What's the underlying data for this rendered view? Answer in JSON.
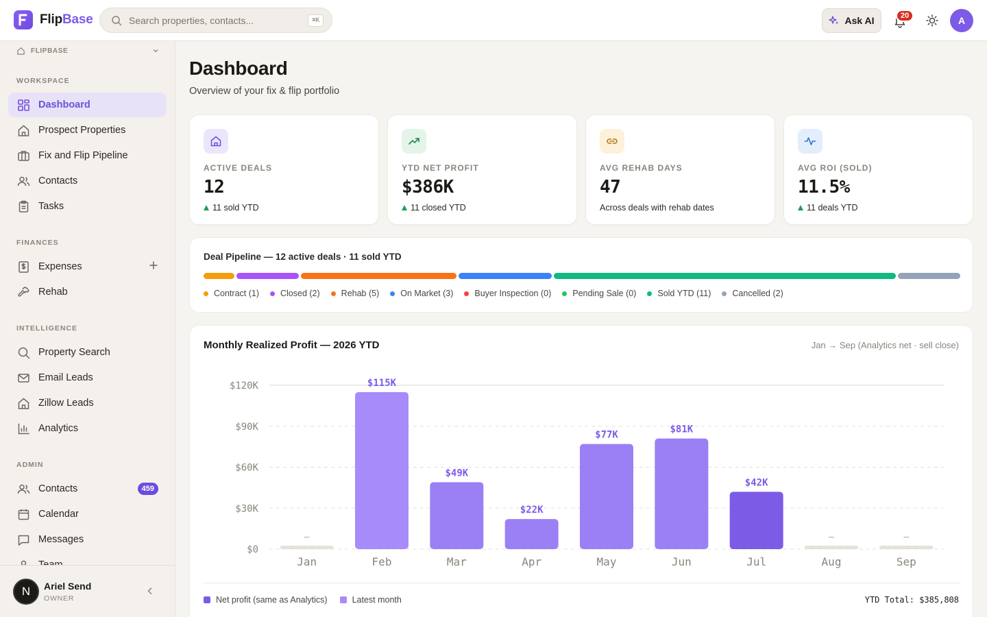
{
  "app": {
    "brand_part1": "Flip",
    "brand_part2": "Base",
    "search_placeholder": "Search properties, contacts...",
    "search_shortcut": "⌘K",
    "ask_ai_label": "Ask AI",
    "notification_count": "20",
    "user_initial": "A"
  },
  "sidebar": {
    "workspace_label": "FLIPBASE",
    "sections": {
      "workspace": "WORKSPACE",
      "finances": "FINANCES",
      "intelligence": "INTELLIGENCE",
      "admin": "ADMIN"
    },
    "workspace_items": [
      {
        "label": "Dashboard",
        "icon": "dashboard-icon",
        "active": true
      },
      {
        "label": "Prospect Properties",
        "icon": "home-icon"
      },
      {
        "label": "Fix and Flip Pipeline",
        "icon": "briefcase-icon"
      },
      {
        "label": "Contacts",
        "icon": "users-icon"
      },
      {
        "label": "Tasks",
        "icon": "clipboard-icon"
      }
    ],
    "finance_items": [
      {
        "label": "Expenses",
        "icon": "dollar-receipt-icon"
      },
      {
        "label": "Rehab",
        "icon": "hammer-icon"
      }
    ],
    "intelligence_items": [
      {
        "label": "Property Search",
        "icon": "search-icon"
      },
      {
        "label": "Email Leads",
        "icon": "mail-icon"
      },
      {
        "label": "Zillow Leads",
        "icon": "home-icon"
      },
      {
        "label": "Analytics",
        "icon": "bar-chart-icon"
      }
    ],
    "admin_items": [
      {
        "label": "Contacts",
        "icon": "users-icon",
        "badge": "459"
      },
      {
        "label": "Calendar",
        "icon": "calendar-icon"
      },
      {
        "label": "Messages",
        "icon": "message-icon"
      },
      {
        "label": "Team",
        "icon": "user-icon"
      }
    ],
    "user": {
      "initial": "N",
      "name": "Ariel Send",
      "role": "OWNER"
    }
  },
  "page": {
    "title": "Dashboard",
    "subtitle": "Overview of your fix & flip portfolio"
  },
  "kpis": [
    {
      "label": "ACTIVE DEALS",
      "value": "12",
      "sub": "11 sold YTD",
      "trend": "up",
      "icon": "home-icon",
      "bg": "#ebe6fb",
      "fg": "#6e4fd8"
    },
    {
      "label": "YTD NET PROFIT",
      "value": "$386K",
      "sub": "11 closed YTD",
      "trend": "up",
      "icon": "trending-up-icon",
      "bg": "#e4f4e8",
      "fg": "#1f8a4c"
    },
    {
      "label": "AVG REHAB DAYS",
      "value": "47",
      "sub": "Across deals with rehab dates",
      "trend": "none",
      "icon": "link-icon",
      "bg": "#fdf1d9",
      "fg": "#b7791f"
    },
    {
      "label": "AVG ROI (SOLD)",
      "value": "11.5%",
      "sub": "11 deals YTD",
      "trend": "up",
      "icon": "activity-icon",
      "bg": "#e3eefc",
      "fg": "#2f6fd6"
    }
  ],
  "pipeline": {
    "title": "Deal Pipeline — 12 active deals · 11 sold YTD",
    "stages": [
      {
        "label": "Contract (1)",
        "count": 1,
        "color": "#f59e0b"
      },
      {
        "label": "Closed (2)",
        "count": 2,
        "color": "#a855f7"
      },
      {
        "label": "Rehab (5)",
        "count": 5,
        "color": "#f97316"
      },
      {
        "label": "On Market (3)",
        "count": 3,
        "color": "#3b82f6"
      },
      {
        "label": "Buyer Inspection (0)",
        "count": 0,
        "color": "#ef4444"
      },
      {
        "label": "Pending Sale (0)",
        "count": 0,
        "color": "#22c55e"
      },
      {
        "label": "Sold YTD (11)",
        "count": 11,
        "color": "#10b981"
      },
      {
        "label": "Cancelled (2)",
        "count": 2,
        "color": "#94a3b8"
      }
    ]
  },
  "chart": {
    "note": "Jan → Sep (Analytics net · sell close)",
    "legend_net": "Net profit (same as Analytics)",
    "legend_latest": "Latest month",
    "ytd_total": "YTD Total: $385,808",
    "color_net": "#7c5ce6",
    "color_latest": "#a78bfa"
  },
  "chart_data": {
    "type": "bar",
    "title": "Monthly Realized Profit — 2026 YTD",
    "categories": [
      "Jan",
      "Feb",
      "Mar",
      "Apr",
      "May",
      "Jun",
      "Jul",
      "Aug",
      "Sep"
    ],
    "values": [
      0,
      115000,
      49000,
      22000,
      77000,
      81000,
      42000,
      0,
      0
    ],
    "data_labels": [
      "—",
      "$115K",
      "$49K",
      "$22K",
      "$77K",
      "$81K",
      "$42K",
      "—",
      "—"
    ],
    "y_ticks": [
      "$0",
      "$30K",
      "$60K",
      "$90K",
      "$120K"
    ],
    "ylim": [
      0,
      120000
    ],
    "grid": true
  }
}
